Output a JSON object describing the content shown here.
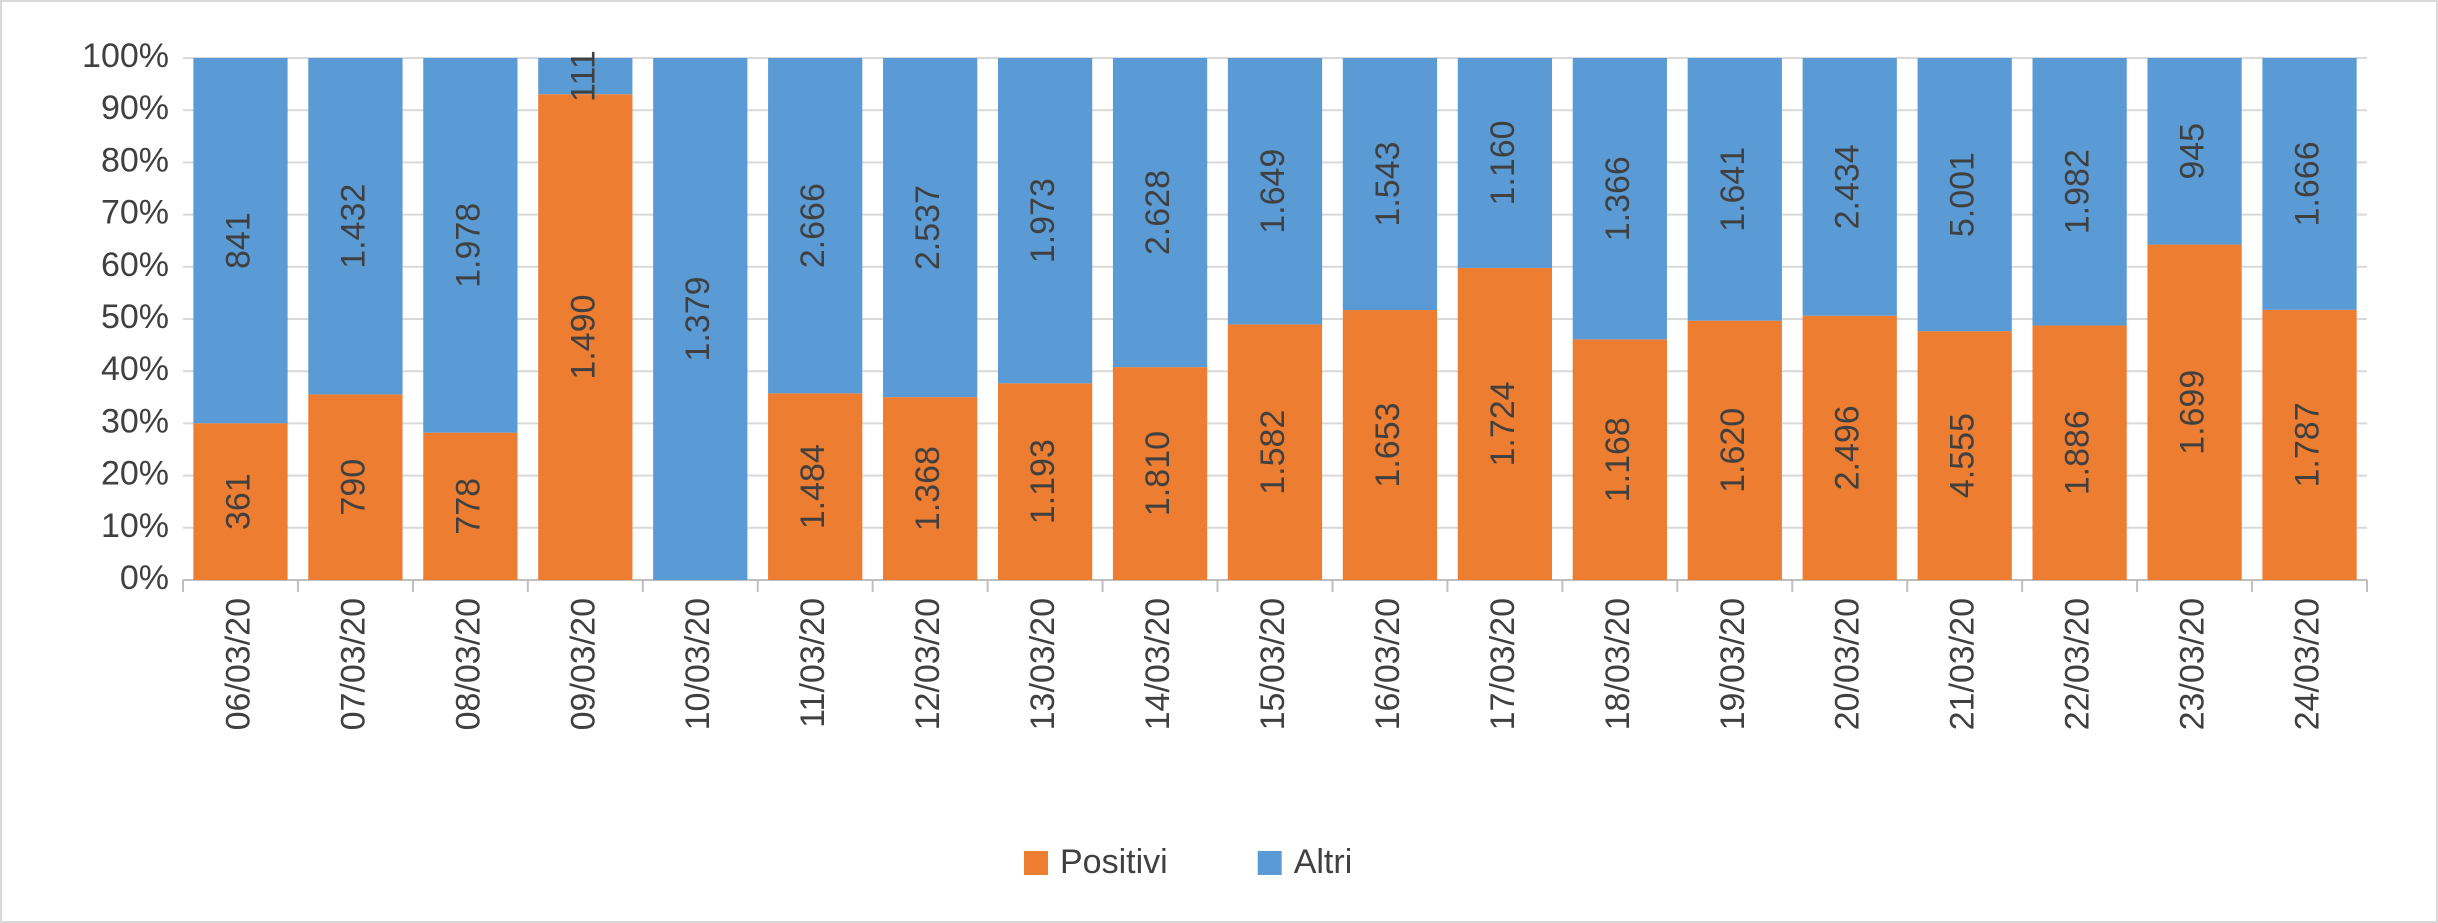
{
  "chart_data": {
    "type": "bar",
    "stacking": "percent",
    "categories": [
      "06/03/20",
      "07/03/20",
      "08/03/20",
      "09/03/20",
      "10/03/20",
      "11/03/20",
      "12/03/20",
      "13/03/20",
      "14/03/20",
      "15/03/20",
      "16/03/20",
      "17/03/20",
      "18/03/20",
      "19/03/20",
      "20/03/20",
      "21/03/20",
      "22/03/20",
      "23/03/20",
      "24/03/20"
    ],
    "series": [
      {
        "name": "Positivi",
        "color": "#ed7d31",
        "values": [
          361,
          790,
          778,
          1490,
          null,
          1484,
          1368,
          1193,
          1810,
          1582,
          1653,
          1724,
          1168,
          1620,
          2496,
          4555,
          1886,
          1699,
          1787
        ],
        "value_labels": [
          "361",
          "790",
          "778",
          "1.490",
          null,
          "1.484",
          "1.368",
          "1.193",
          "1.810",
          "1.582",
          "1.653",
          "1.724",
          "1.168",
          "1.620",
          "2.496",
          "4.555",
          "1.886",
          "1.699",
          "1.787"
        ]
      },
      {
        "name": "Altri",
        "color": "#5b9bd5",
        "values": [
          841,
          1432,
          1978,
          111,
          1379,
          2666,
          2537,
          1973,
          2628,
          1649,
          1543,
          1160,
          1366,
          1641,
          2434,
          5001,
          1982,
          945,
          1666
        ],
        "value_labels": [
          "841",
          "1.432",
          "1.978",
          "111",
          "1.379",
          "2.666",
          "2.537",
          "1.973",
          "2.628",
          "1.649",
          "1.543",
          "1.160",
          "1.366",
          "1.641",
          "2.434",
          "5.001",
          "1.982",
          "945",
          "1.666"
        ]
      }
    ],
    "ylim": [
      0,
      100
    ],
    "yticks": [
      {
        "value": 0,
        "label": "0%"
      },
      {
        "value": 10,
        "label": "10%"
      },
      {
        "value": 20,
        "label": "20%"
      },
      {
        "value": 30,
        "label": "30%"
      },
      {
        "value": 40,
        "label": "40%"
      },
      {
        "value": 50,
        "label": "50%"
      },
      {
        "value": 60,
        "label": "60%"
      },
      {
        "value": 70,
        "label": "70%"
      },
      {
        "value": 80,
        "label": "80%"
      },
      {
        "value": 90,
        "label": "90%"
      },
      {
        "value": 100,
        "label": "100%"
      }
    ],
    "grid": true,
    "legend": "bottom"
  }
}
